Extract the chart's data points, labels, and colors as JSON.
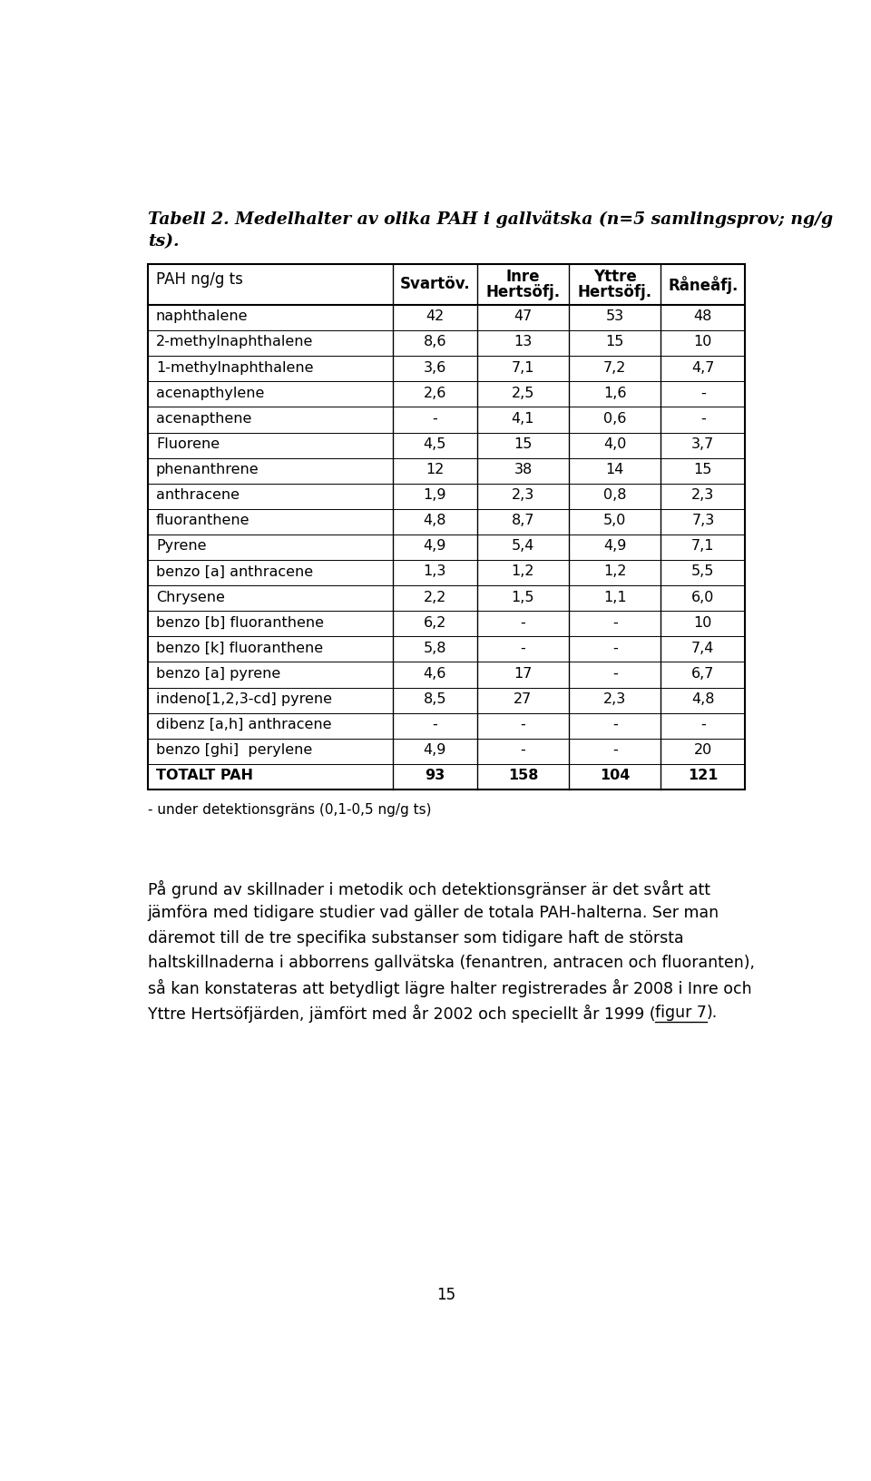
{
  "title_line1": "Tabell 2. Medelhalter av olika PAH i gallvätska (n=5 samlingsprov; ng/g",
  "title_line2": "ts).",
  "rows": [
    [
      "naphthalene",
      "42",
      "47",
      "53",
      "48"
    ],
    [
      "2-methylnaphthalene",
      "8,6",
      "13",
      "15",
      "10"
    ],
    [
      "1-methylnaphthalene",
      "3,6",
      "7,1",
      "7,2",
      "4,7"
    ],
    [
      "acenapthylene",
      "2,6",
      "2,5",
      "1,6",
      "-"
    ],
    [
      "acenapthene",
      "-",
      "4,1",
      "0,6",
      "-"
    ],
    [
      "Fluorene",
      "4,5",
      "15",
      "4,0",
      "3,7"
    ],
    [
      "phenanthrene",
      "12",
      "38",
      "14",
      "15"
    ],
    [
      "anthracene",
      "1,9",
      "2,3",
      "0,8",
      "2,3"
    ],
    [
      "fluoranthene",
      "4,8",
      "8,7",
      "5,0",
      "7,3"
    ],
    [
      "Pyrene",
      "4,9",
      "5,4",
      "4,9",
      "7,1"
    ],
    [
      "benzo [a] anthracene",
      "1,3",
      "1,2",
      "1,2",
      "5,5"
    ],
    [
      "Chrysene",
      "2,2",
      "1,5",
      "1,1",
      "6,0"
    ],
    [
      "benzo [b] fluoranthene",
      "6,2",
      "-",
      "-",
      "10"
    ],
    [
      "benzo [k] fluoranthene",
      "5,8",
      "-",
      "-",
      "7,4"
    ],
    [
      "benzo [a] pyrene",
      "4,6",
      "17",
      "-",
      "6,7"
    ],
    [
      "indeno[1,2,3-cd] pyrene",
      "8,5",
      "27",
      "2,3",
      "4,8"
    ],
    [
      "dibenz [a,h] anthracene",
      "-",
      "-",
      "-",
      "-"
    ],
    [
      "benzo [ghi]  perylene",
      "4,9",
      "-",
      "-",
      "20"
    ],
    [
      "TOTALT PAH",
      "93",
      "158",
      "104",
      "121"
    ]
  ],
  "footnote": "- under detektionsgräns (0,1-0,5 ng/g ts)",
  "body_lines": [
    "På grund av skillnader i metodik och detektionsgränser är det svårt att",
    "jämföra med tidigare studier vad gäller de totala PAH-halterna. Ser man",
    "däremot till de tre specifika substanser som tidigare haft de största",
    "haltskillnaderna i abborrens gallvätska (fenantren, antracen och fluoranten),",
    "så kan konstateras att betydligt lägre halter registrerades år 2008 i Inre och",
    "Yttre Hertsöfjärden, jämfört med år 2002 och speciellt år 1999 ("
  ],
  "body_last_link": "figur 7",
  "body_last_post": ").",
  "page_number": "15",
  "background_color": "#ffffff",
  "text_color": "#000000",
  "font_size_title": 13.5,
  "font_size_header": 12,
  "font_size_body": 12.5,
  "font_size_table": 11.5,
  "font_size_footnote": 11,
  "font_size_page": 12
}
